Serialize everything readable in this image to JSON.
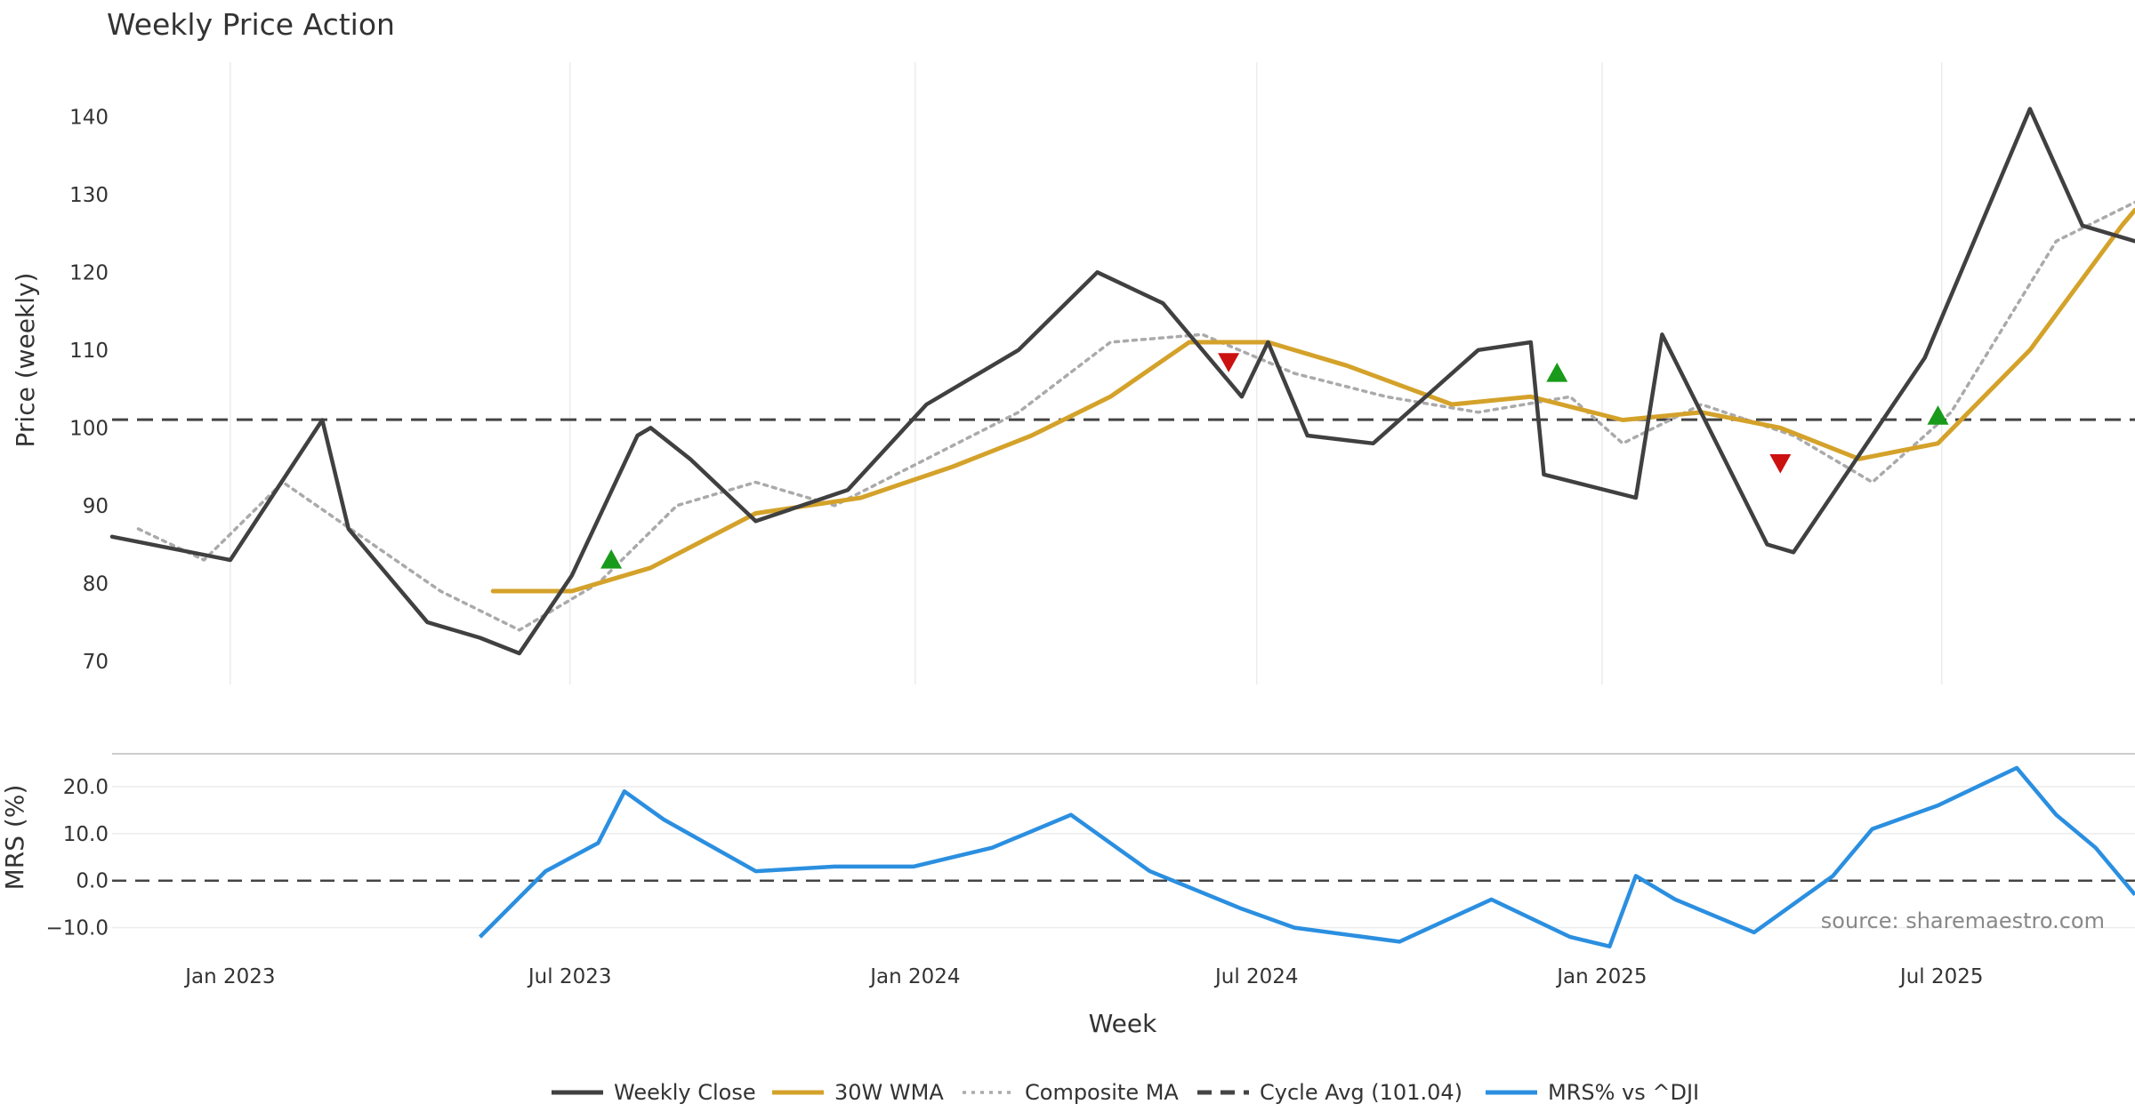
{
  "chart_data": {
    "type": "line",
    "title": "Weekly Price Action",
    "xlabel": "Week",
    "source": "source: sharemaestro.com",
    "x_ticks": [
      "Jan 2023",
      "Jul 2023",
      "Jan 2024",
      "Jul 2024",
      "Jan 2025",
      "Jul 2025"
    ],
    "x_tick_dates": [
      "2023-01-01",
      "2023-07-01",
      "2024-01-01",
      "2024-07-01",
      "2025-01-01",
      "2025-07-01"
    ],
    "x_range": [
      "2022-10-30",
      "2025-10-12"
    ],
    "grid": true,
    "legend_position": "bottom-center",
    "colors": {
      "weekly_close": "#404040",
      "wma": "#d4a22a",
      "composite_ma": "#aaaaaa",
      "cycle_avg": "#444444",
      "mrs": "#2b8fe0",
      "buy_marker": "#1a9a1a",
      "sell_marker": "#cc1111"
    },
    "price_panel": {
      "ylabel": "Price (weekly)",
      "ylim": [
        67,
        147
      ],
      "y_ticks": [
        "70",
        "80",
        "90",
        "100",
        "110",
        "120",
        "130",
        "140"
      ],
      "y_tick_values": [
        70,
        80,
        90,
        100,
        110,
        120,
        130,
        140
      ],
      "cycle_avg": 101.04,
      "series": [
        {
          "name": "Weekly Close",
          "x": [
            "2022-10-30",
            "2023-01-01",
            "2023-02-19",
            "2023-03-05",
            "2023-04-16",
            "2023-05-14",
            "2023-06-04",
            "2023-07-02",
            "2023-08-06",
            "2023-08-13",
            "2023-09-03",
            "2023-10-08",
            "2023-11-26",
            "2024-01-07",
            "2024-02-25",
            "2024-04-07",
            "2024-05-12",
            "2024-06-23",
            "2024-07-07",
            "2024-07-28",
            "2024-09-01",
            "2024-10-27",
            "2024-11-24",
            "2024-12-01",
            "2025-01-19",
            "2025-02-02",
            "2025-03-30",
            "2025-04-13",
            "2025-05-25",
            "2025-06-22",
            "2025-08-17",
            "2025-09-14",
            "2025-10-12"
          ],
          "y": [
            86,
            83,
            101,
            87,
            75,
            73,
            71,
            81,
            99,
            100,
            96,
            88,
            92,
            103,
            110,
            120,
            116,
            104,
            111,
            99,
            98,
            110,
            111,
            94,
            91,
            112,
            85,
            84,
            99,
            109,
            141,
            126,
            124
          ]
        },
        {
          "name": "30W WMA",
          "x": [
            "2023-05-21",
            "2023-07-02",
            "2023-08-13",
            "2023-10-08",
            "2023-12-03",
            "2024-01-21",
            "2024-03-03",
            "2024-04-14",
            "2024-05-26",
            "2024-07-07",
            "2024-08-18",
            "2024-10-13",
            "2024-11-24",
            "2025-01-12",
            "2025-02-23",
            "2025-04-06",
            "2025-05-18",
            "2025-06-29",
            "2025-08-17",
            "2025-10-05",
            "2025-10-12"
          ],
          "y": [
            79,
            79,
            82,
            89,
            91,
            95,
            99,
            104,
            111,
            111,
            108,
            103,
            104,
            101,
            102,
            100,
            96,
            98,
            110,
            126,
            128
          ]
        },
        {
          "name": "Composite MA",
          "x": [
            "2022-11-13",
            "2022-12-18",
            "2023-01-29",
            "2023-03-12",
            "2023-04-23",
            "2023-06-04",
            "2023-07-16",
            "2023-08-27",
            "2023-10-08",
            "2023-11-19",
            "2024-01-07",
            "2024-02-25",
            "2024-04-14",
            "2024-06-02",
            "2024-07-21",
            "2024-09-08",
            "2024-10-27",
            "2024-12-15",
            "2025-01-12",
            "2025-02-23",
            "2025-04-13",
            "2025-05-25",
            "2025-07-06",
            "2025-08-31",
            "2025-10-12"
          ],
          "y": [
            87,
            83,
            93,
            86,
            79,
            74,
            80,
            90,
            93,
            90,
            96,
            102,
            111,
            112,
            107,
            104,
            102,
            104,
            98,
            103,
            99,
            93,
            102,
            124,
            129
          ]
        }
      ],
      "markers": [
        {
          "type": "buy",
          "x": "2023-07-23",
          "y": 83
        },
        {
          "type": "sell",
          "x": "2024-06-16",
          "y": 108.5
        },
        {
          "type": "buy",
          "x": "2024-12-08",
          "y": 107
        },
        {
          "type": "sell",
          "x": "2025-04-06",
          "y": 95.5
        },
        {
          "type": "buy",
          "x": "2025-06-29",
          "y": 101.5
        }
      ]
    },
    "mrs_panel": {
      "ylabel": "MRS (%)",
      "ylim": [
        -15,
        27
      ],
      "y_ticks": [
        "20.0",
        "10.0",
        "0.0",
        "−10.0"
      ],
      "y_tick_values": [
        20,
        10,
        0,
        -10
      ],
      "zero_line": 0,
      "series": [
        {
          "name": "MRS% vs ^DJI",
          "x": [
            "2023-05-14",
            "2023-06-18",
            "2023-07-16",
            "2023-07-30",
            "2023-08-20",
            "2023-10-08",
            "2023-11-19",
            "2023-12-31",
            "2024-02-11",
            "2024-03-24",
            "2024-05-05",
            "2024-06-23",
            "2024-07-21",
            "2024-09-15",
            "2024-11-03",
            "2024-12-15",
            "2025-01-05",
            "2025-01-19",
            "2025-02-09",
            "2025-03-23",
            "2025-05-04",
            "2025-05-25",
            "2025-06-29",
            "2025-08-10",
            "2025-08-31",
            "2025-09-21",
            "2025-10-12"
          ],
          "y": [
            -12,
            2,
            8,
            19,
            13,
            2,
            3,
            3,
            7,
            14,
            2,
            -6,
            -10,
            -13,
            -4,
            -12,
            -14,
            1,
            -4,
            -11,
            1,
            11,
            16,
            24,
            14,
            7,
            -3
          ]
        }
      ]
    },
    "legend": [
      {
        "label": "Weekly Close",
        "style": "solid",
        "color": "#404040"
      },
      {
        "label": "30W WMA",
        "style": "solid",
        "color": "#d4a22a"
      },
      {
        "label": "Composite MA",
        "style": "dotted",
        "color": "#aaaaaa"
      },
      {
        "label": "Cycle Avg (101.04)",
        "style": "dashed",
        "color": "#444444"
      },
      {
        "label": "MRS% vs ^DJI",
        "style": "solid",
        "color": "#2b8fe0"
      }
    ]
  }
}
